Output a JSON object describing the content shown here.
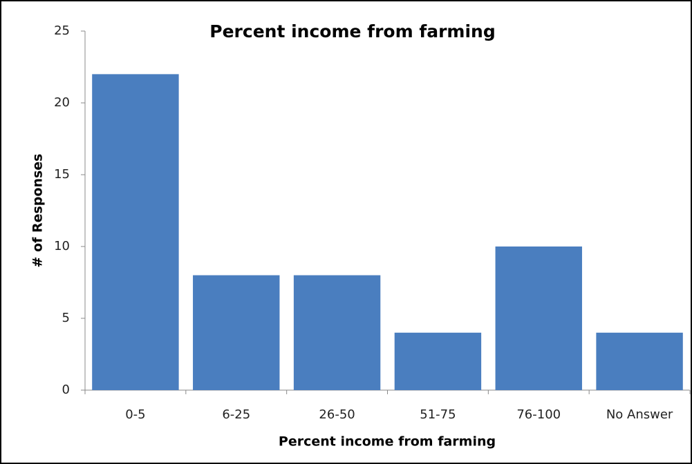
{
  "chart_data": {
    "type": "bar",
    "title": "Percent income from farming",
    "x_label": "Percent income from farming",
    "y_label": "# of Responses",
    "categories": [
      "0-5",
      "6-25",
      "26-50",
      "51-75",
      "76-100",
      "No Answer"
    ],
    "values": [
      22,
      8,
      8,
      4,
      10,
      4
    ],
    "color": "#4a7ebf",
    "ylim": [
      0,
      25
    ],
    "yticks": [
      0,
      5,
      10,
      15,
      20,
      25
    ],
    "grid": false
  }
}
